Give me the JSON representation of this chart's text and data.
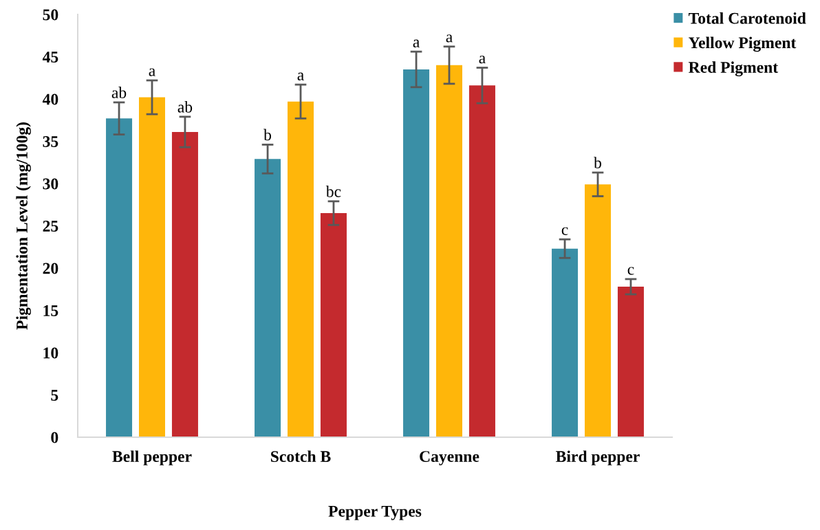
{
  "chart_data": {
    "type": "bar",
    "xlabel": "Pepper Types",
    "ylabel": "Pigmentation Level (mg/100g)",
    "categories": [
      "Bell pepper",
      "Scotch B",
      "Cayenne",
      "Bird pepper"
    ],
    "series": [
      {
        "name": "Total Carotenoid",
        "color": "#3a8fa6",
        "values": [
          37.7,
          32.9,
          43.5,
          22.3
        ],
        "errors": [
          1.9,
          1.7,
          2.1,
          1.1
        ],
        "value_labels": [
          "ab",
          "b",
          "a",
          "c"
        ]
      },
      {
        "name": "Yellow Pigment",
        "color": "#ffb60a",
        "values": [
          40.2,
          39.7,
          44.0,
          29.9
        ],
        "errors": [
          2.0,
          2.0,
          2.2,
          1.4
        ],
        "value_labels": [
          "a",
          "a",
          "a",
          "b"
        ]
      },
      {
        "name": "Red Pigment",
        "color": "#c42a2e",
        "values": [
          36.1,
          26.5,
          41.6,
          17.8
        ],
        "errors": [
          1.8,
          1.4,
          2.1,
          0.9
        ],
        "value_labels": [
          "ab",
          "bc",
          "a",
          "c"
        ]
      }
    ],
    "ylim": [
      0,
      50
    ],
    "yticks": [
      0,
      5,
      10,
      15,
      20,
      25,
      30,
      35,
      40,
      45,
      50
    ],
    "grid": false,
    "legend": "top right"
  }
}
